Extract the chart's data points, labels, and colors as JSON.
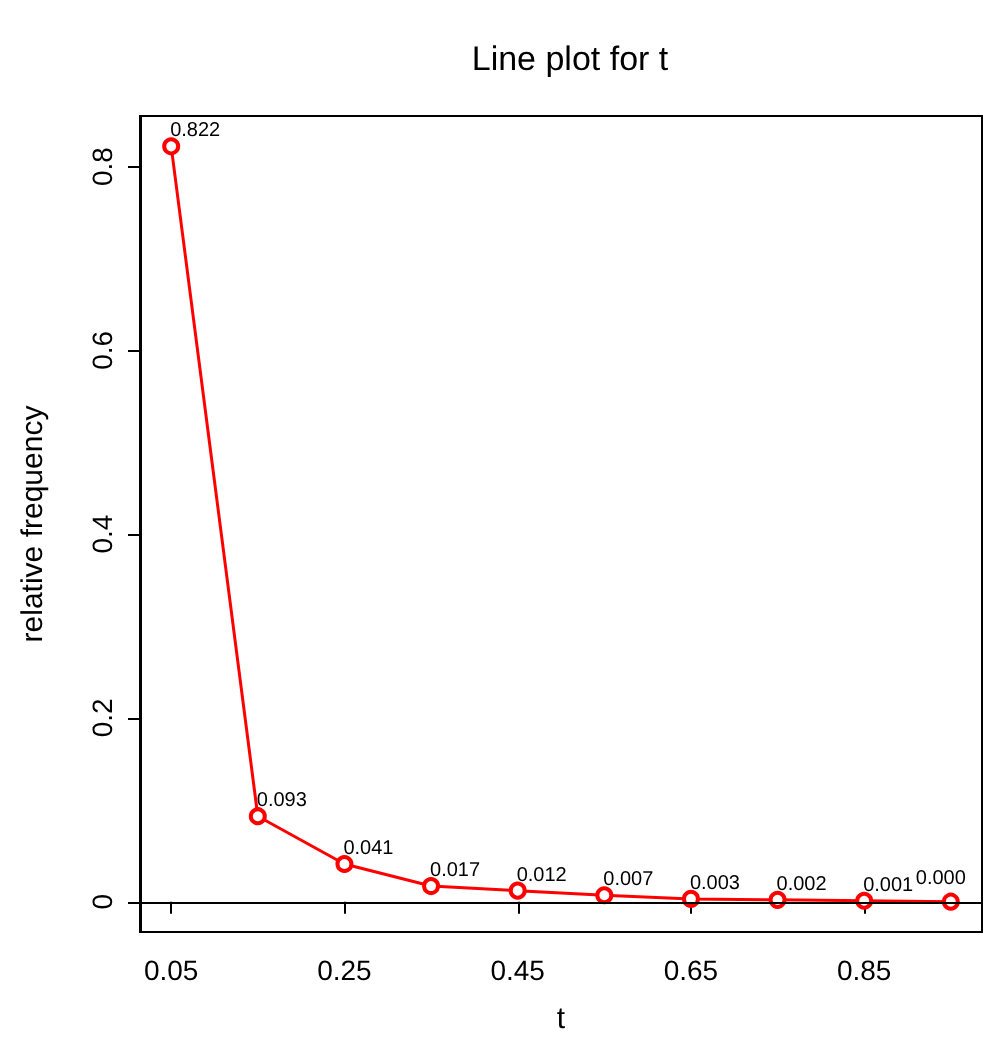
{
  "chart_data": {
    "type": "line",
    "title": "Line plot for t",
    "xlabel": "t",
    "ylabel": "relative frequency",
    "x": [
      0.05,
      0.15,
      0.25,
      0.35,
      0.45,
      0.55,
      0.65,
      0.75,
      0.85,
      0.95
    ],
    "series": [
      {
        "color": "#ff0000",
        "values": [
          0.822,
          0.093,
          0.041,
          0.017,
          0.012,
          0.007,
          0.003,
          0.002,
          0.001,
          0.0
        ],
        "value_labels": [
          "0.822",
          "0.093",
          "0.041",
          "0.017",
          "0.012",
          "0.007",
          "0.003",
          "0.002",
          "0.001",
          "0.000"
        ]
      }
    ],
    "xlim": [
      0.014,
      0.986
    ],
    "xticks": [
      0.05,
      0.25,
      0.45,
      0.65,
      0.85
    ],
    "ylim": [
      -0.033,
      0.855
    ],
    "yticks": [
      0,
      0.2,
      0.4,
      0.6,
      0.8
    ],
    "ref_lines": [
      {
        "axis": "y",
        "value": 0,
        "color": "#000000",
        "line_style": "solid"
      }
    ],
    "marker": "circle",
    "line_style": "solid",
    "grid": false
  }
}
